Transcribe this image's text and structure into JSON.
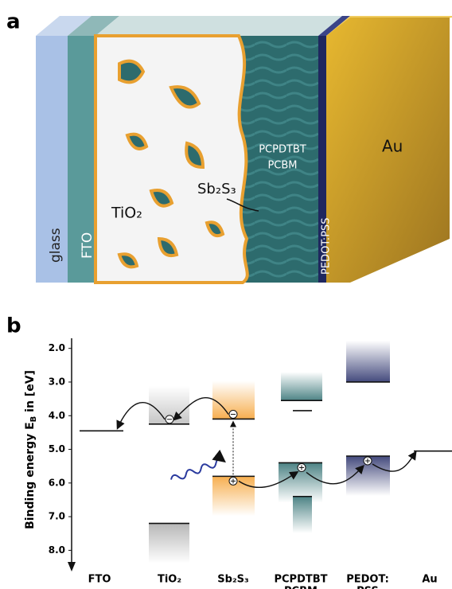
{
  "panel_a": {
    "label": "a",
    "layers": {
      "glass": "glass",
      "fto": "FTO",
      "tio2": "TiO₂",
      "sb2s3": "Sb₂S₃",
      "polymer": "PCPDTBT",
      "pcbm": "PCBM",
      "pedot": "PEDOT:PSS",
      "au": "Au"
    }
  },
  "panel_b": {
    "label": "b",
    "y_label": "Binding energy E",
    "y_label_sub": "B",
    "y_label_rest": " in [eV]",
    "ylim": [
      1.7,
      8.7
    ],
    "yticks": [
      {
        "value": 2,
        "label": "2.0"
      },
      {
        "value": 3,
        "label": "3.0"
      },
      {
        "value": 4,
        "label": "4.0"
      },
      {
        "value": 5,
        "label": "5.0"
      },
      {
        "value": 6,
        "label": "6.0"
      },
      {
        "value": 7,
        "label": "7.0"
      },
      {
        "value": 8,
        "label": "8.0"
      }
    ],
    "materials": [
      {
        "name": "FTO",
        "levels": [
          4.45
        ]
      },
      {
        "name": "TiO₂",
        "levels": [
          4.25,
          7.2
        ]
      },
      {
        "name": "Sb₂S₃",
        "levels": [
          4.1,
          5.8
        ]
      },
      {
        "name": "PCPDTBT",
        "name2": "PCBM",
        "levels": [
          3.55,
          5.4,
          3.85,
          6.4
        ]
      },
      {
        "name": "PEDOT:",
        "name2": "PSS",
        "levels": [
          3.0,
          5.2
        ]
      },
      {
        "name": "Au",
        "levels": [
          5.05
        ]
      }
    ]
  }
}
